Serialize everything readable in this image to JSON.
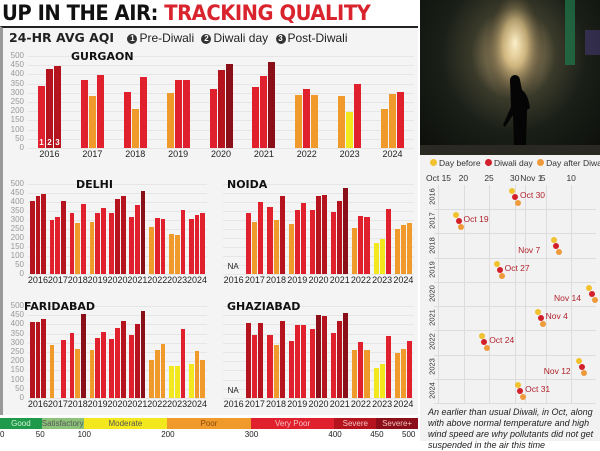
{
  "header": {
    "title_black": "UP IN THE AIR: ",
    "title_red": "TRACKING QUALITY",
    "subtitle": "24-HR AVG AQI",
    "legend": [
      {
        "num": "1",
        "label": "Pre-Diwali"
      },
      {
        "num": "2",
        "label": "Diwali day"
      },
      {
        "num": "3",
        "label": "Post-Diwali"
      }
    ]
  },
  "colors": {
    "good": "#1e9a4a",
    "satisfactory": "#8cc27a",
    "moderate": "#f3e81d",
    "poor": "#ef9a2a",
    "very_poor": "#e1202e",
    "severe": "#b5141f",
    "severe_plus": "#8a0f18"
  },
  "aqi_scale": {
    "segments": [
      {
        "label": "Good",
        "from": 0,
        "to": 50,
        "color": "#1e9a4a"
      },
      {
        "label": "Satisfactory",
        "from": 50,
        "to": 100,
        "color": "#8cc27a"
      },
      {
        "label": "Moderate",
        "from": 100,
        "to": 200,
        "color": "#f3e81d"
      },
      {
        "label": "Poor",
        "from": 200,
        "to": 300,
        "color": "#ef9a2a"
      },
      {
        "label": "Very Poor",
        "from": 300,
        "to": 400,
        "color": "#e1202e"
      },
      {
        "label": "Severe",
        "from": 400,
        "to": 450,
        "color": "#b5141f"
      },
      {
        "label": "Severe+",
        "from": 450,
        "to": 500,
        "color": "#8a0f18"
      }
    ],
    "ticks": [
      "0",
      "50",
      "100",
      "200",
      "300",
      "400",
      "450",
      "500"
    ]
  },
  "chart_data": [
    {
      "type": "bar",
      "title": "GURGAON",
      "ylabel": "24-hr avg AQI",
      "ylim": [
        0,
        500
      ],
      "yticks": [
        0,
        50,
        100,
        150,
        200,
        250,
        300,
        350,
        400,
        450,
        500
      ],
      "categories": [
        "2016",
        "2017",
        "2018",
        "2019",
        "2020",
        "2021",
        "2022",
        "2023",
        "2024"
      ],
      "series": [
        {
          "name": "Pre-Diwali",
          "values": [
            335,
            370,
            307,
            298,
            322,
            330,
            289,
            283,
            214
          ]
        },
        {
          "name": "Diwali day",
          "values": [
            430,
            282,
            212,
            370,
            423,
            392,
            320,
            197,
            294
          ]
        },
        {
          "name": "Post-Diwali",
          "values": [
            443,
            395,
            387,
            368,
            455,
            466,
            286,
            350,
            307
          ]
        }
      ]
    },
    {
      "type": "bar",
      "title": "DELHI",
      "ylim": [
        0,
        500
      ],
      "yticks": [
        0,
        50,
        100,
        150,
        200,
        250,
        300,
        350,
        400,
        450,
        500
      ],
      "categories": [
        "2016",
        "2017",
        "2018",
        "2019",
        "2020",
        "2021",
        "2022",
        "2023",
        "2024"
      ],
      "series": [
        {
          "name": "Pre-Diwali",
          "values": [
            404,
            302,
            338,
            287,
            339,
            314,
            259,
            220,
            307
          ]
        },
        {
          "name": "Diwali day",
          "values": [
            431,
            319,
            281,
            337,
            414,
            382,
            312,
            218,
            328
          ]
        },
        {
          "name": "Post-Diwali",
          "values": [
            445,
            403,
            390,
            368,
            435,
            462,
            303,
            358,
            339
          ]
        }
      ]
    },
    {
      "type": "bar",
      "title": "NOIDA",
      "ylim": [
        0,
        500
      ],
      "categories": [
        "2016",
        "2017",
        "2018",
        "2019",
        "2020",
        "2021",
        "2022",
        "2023",
        "2024"
      ],
      "na": [
        "2016"
      ],
      "series": [
        {
          "name": "Pre-Diwali",
          "values": [
            null,
            340,
            375,
            280,
            357,
            345,
            255,
            175,
            250
          ]
        },
        {
          "name": "Diwali day",
          "values": [
            null,
            288,
            300,
            355,
            432,
            403,
            323,
            195,
            272
          ]
        },
        {
          "name": "Post-Diwali",
          "values": [
            null,
            400,
            435,
            397,
            440,
            479,
            318,
            362,
            282
          ]
        }
      ]
    },
    {
      "type": "bar",
      "title": "FARIDABAD",
      "ylim": [
        0,
        500
      ],
      "yticks": [
        0,
        50,
        100,
        150,
        200,
        250,
        300,
        350,
        400,
        450,
        500
      ],
      "categories": [
        "2016",
        "2017",
        "2018",
        "2019",
        "2020",
        "2021",
        "2022",
        "2023",
        "2024"
      ],
      "na_note": "2017 Diwali day NA",
      "series": [
        {
          "name": "Pre-Diwali",
          "values": [
            411,
            288,
            353,
            263,
            323,
            341,
            205,
            175,
            187
          ]
        },
        {
          "name": "Diwali day",
          "values": [
            415,
            null,
            265,
            327,
            381,
            404,
            260,
            175,
            255
          ]
        },
        {
          "name": "Post-Diwali",
          "values": [
            431,
            314,
            458,
            361,
            419,
            471,
            293,
            374,
            206
          ]
        }
      ]
    },
    {
      "type": "bar",
      "title": "GHAZIABAD",
      "ylim": [
        0,
        500
      ],
      "categories": [
        "2016",
        "2017",
        "2018",
        "2019",
        "2020",
        "2021",
        "2022",
        "2023",
        "2024"
      ],
      "na": [
        "2016"
      ],
      "series": [
        {
          "name": "Pre-Diwali",
          "values": [
            null,
            408,
            345,
            310,
            375,
            353,
            263,
            165,
            243
          ]
        },
        {
          "name": "Diwali day",
          "values": [
            null,
            340,
            290,
            396,
            453,
            418,
            305,
            185,
            265
          ]
        },
        {
          "name": "Post-Diwali",
          "values": [
            null,
            410,
            420,
            396,
            445,
            460,
            263,
            335,
            308
          ]
        }
      ]
    },
    {
      "type": "scatter",
      "title": "Diwali dates",
      "legend": [
        "Day before",
        "Diwali day",
        "Day after Diwali"
      ],
      "x_ticks": [
        "Oct 15",
        "20",
        "25",
        "30",
        "Nov 1",
        "5",
        "10"
      ],
      "y_categories": [
        "2016",
        "2017",
        "2018",
        "2019",
        "2020",
        "2021",
        "2022",
        "2023",
        "2024"
      ],
      "diwali_dates": [
        "Oct 30",
        "Oct 19",
        "Nov 7",
        "Oct 27",
        "Nov 14",
        "Nov 4",
        "Oct 24",
        "Nov 12",
        "Oct 31"
      ]
    }
  ],
  "right_panel": {
    "legend": [
      {
        "label": "Day before",
        "color": "#f2c12e"
      },
      {
        "label": "Diwali day",
        "color": "#d21f2b"
      },
      {
        "label": "Day after Diwali",
        "color": "#ee9a3a"
      }
    ],
    "date_ticks": [
      "Oct 15",
      "20",
      "25",
      "30",
      "Nov 1",
      "5",
      "10"
    ],
    "years": [
      "2016",
      "2017",
      "2018",
      "2019",
      "2020",
      "2021",
      "2022",
      "2023",
      "2024"
    ],
    "dates": [
      "Oct 30",
      "Oct 19",
      "Nov 7",
      "Oct 27",
      "Nov 14",
      "Nov 4",
      "Oct 24",
      "Nov 12",
      "Oct 31"
    ],
    "note": "An earlier than usual Diwali, in Oct, along with above normal temperature and high wind speed are why pollutants did not get suspended in the air this time"
  },
  "photo": {
    "description": "Person silhouetted against firecracker sparks at night"
  }
}
